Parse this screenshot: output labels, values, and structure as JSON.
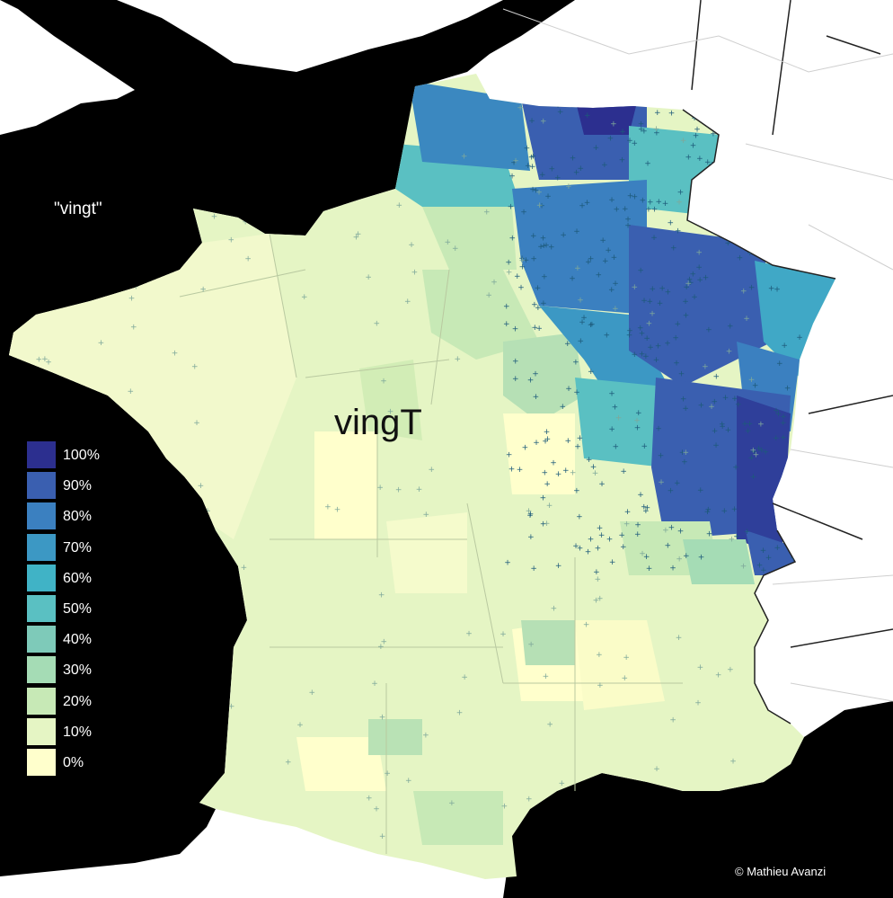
{
  "map": {
    "title": "\"vingt\"",
    "word": "vingT",
    "credit": "© Mathieu Avanzi"
  },
  "legend": [
    {
      "label": "100%",
      "color": "#2c2f8f"
    },
    {
      "label": "90%",
      "color": "#3a5fb0"
    },
    {
      "label": "80%",
      "color": "#3b80c0"
    },
    {
      "label": "70%",
      "color": "#3c98c4"
    },
    {
      "label": "60%",
      "color": "#40b3c6"
    },
    {
      "label": "50%",
      "color": "#5ac0c2"
    },
    {
      "label": "40%",
      "color": "#7ecab9"
    },
    {
      "label": "30%",
      "color": "#a5dcb5"
    },
    {
      "label": "20%",
      "color": "#c7e9b6"
    },
    {
      "label": "10%",
      "color": "#e5f5c4"
    },
    {
      "label": "0%",
      "color": "#ffffcc"
    }
  ],
  "colors": {
    "sea": "#000000",
    "land_outside": "#ffffff",
    "border": "#222222"
  }
}
